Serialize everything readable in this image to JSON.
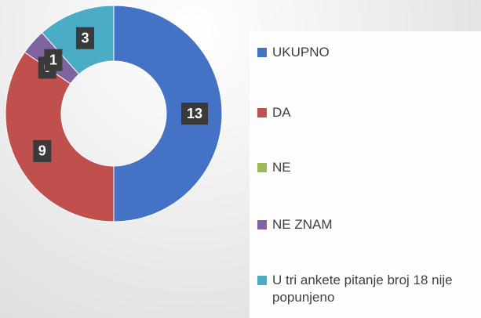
{
  "chart_data": {
    "type": "donut",
    "categories": [
      "UKUPNO",
      "DA",
      "NE",
      "NE ZNAM",
      "U tri ankete pitanje broj 18 nije popunjeno"
    ],
    "values": [
      13,
      9,
      0,
      1,
      3
    ],
    "colors": [
      "#4472c4",
      "#c0504d",
      "#9bbb59",
      "#8064a2",
      "#4bacc6"
    ],
    "legend": "right"
  }
}
